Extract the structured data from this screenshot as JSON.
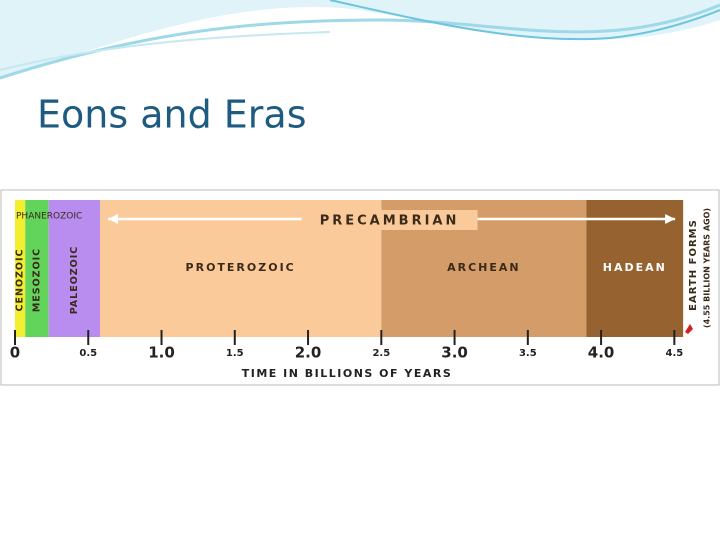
{
  "chart_data": {
    "type": "timeline",
    "title": "Eons and Eras",
    "xlabel": "TIME IN BILLIONS OF YEARS",
    "xlim": [
      0,
      4.6
    ],
    "xticks": [
      0,
      0.5,
      {
        "value": 1,
        "label": "1.0"
      },
      1.5,
      {
        "value": 2,
        "label": "2.0"
      },
      2.5,
      {
        "value": 3,
        "label": "3.0"
      },
      3.5,
      {
        "value": 4,
        "label": "4.0"
      },
      4.5
    ],
    "series": [
      {
        "name": "CENOZOIC",
        "color": "#f3ee2e",
        "start": 0,
        "end": 0.07,
        "vertical": true
      },
      {
        "name": "MESOZOIC",
        "color": "#62d45c",
        "start": 0.07,
        "end": 0.23,
        "vertical": true
      },
      {
        "name": "PALEOZOIC",
        "color": "#b98cf0",
        "start": 0.23,
        "end": 0.58,
        "vertical": true
      },
      {
        "name": "PROTEROZOIC",
        "color": "#fbca9b",
        "start": 0.58,
        "end": 2.5,
        "vertical": false
      },
      {
        "name": "ARCHEAN",
        "color": "#d49c69",
        "start": 2.5,
        "end": 3.9,
        "vertical": false
      },
      {
        "name": "HADEAN",
        "color": "#96622f",
        "start": 3.9,
        "end": 4.56,
        "vertical": false
      }
    ],
    "annotations": {
      "phanerozoic": "PHANEROZOIC",
      "precambrian": "PRECAMBRIAN",
      "event": "EARTH FORMS",
      "event_note": "(4.55 BILLION YEARS AGO)"
    }
  }
}
